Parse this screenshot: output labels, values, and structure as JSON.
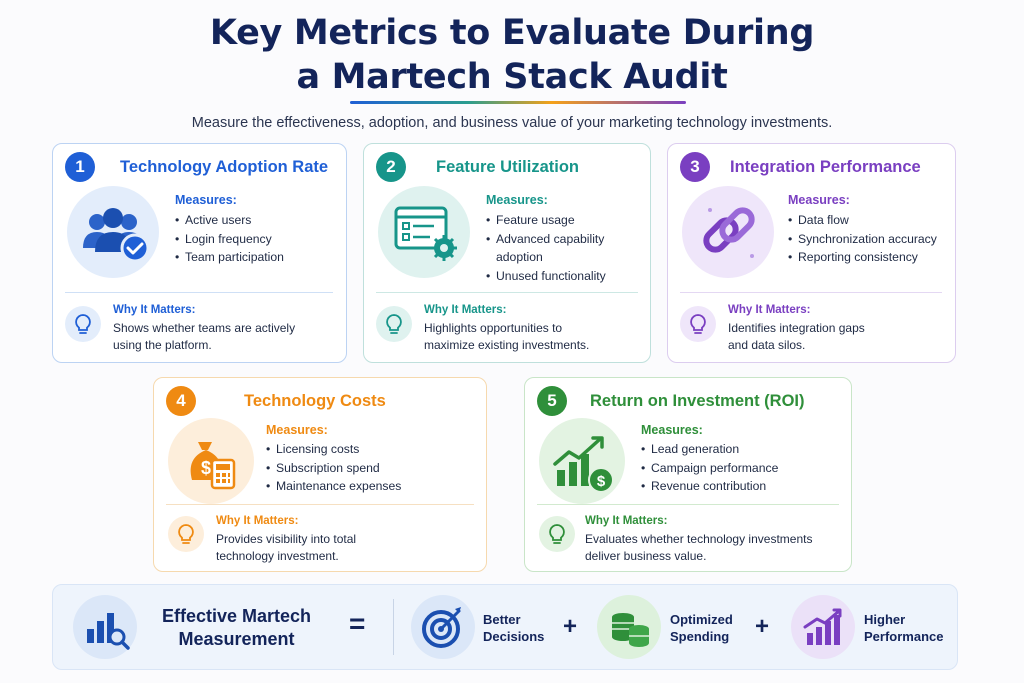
{
  "title": {
    "line1": "Key Metrics to Evaluate During",
    "line2": "a Martech Stack Audit"
  },
  "subtitle": "Measure the effectiveness, adoption, and business value of your marketing technology investments.",
  "cards": [
    {
      "number": "1",
      "title": "Technology Adoption Rate",
      "accent": "#1f5fd6",
      "icon": "users-check-icon",
      "measures_label": "Measures:",
      "measures": [
        "Active users",
        "Login frequency",
        "Team participation"
      ],
      "why_label": "Why It Matters:",
      "why_lines": [
        "Shows whether teams are actively",
        "using the platform."
      ]
    },
    {
      "number": "2",
      "title": "Feature Utilization",
      "accent": "#17958a",
      "icon": "dashboard-gear-icon",
      "measures_label": "Measures:",
      "measures": [
        "Feature usage",
        "Advanced capability",
        "adoption",
        "Unused functionality"
      ],
      "why_label": "Why It Matters:",
      "why_lines": [
        "Highlights opportunities to",
        "maximize existing investments."
      ]
    },
    {
      "number": "3",
      "title": "Integration Performance",
      "accent": "#7a3fc1",
      "icon": "chain-link-icon",
      "measures_label": "Measures:",
      "measures": [
        "Data flow",
        "Synchronization accuracy",
        "Reporting consistency"
      ],
      "why_label": "Why It Matters:",
      "why_lines": [
        "Identifies integration gaps",
        "and data silos."
      ]
    },
    {
      "number": "4",
      "title": "Technology Costs",
      "accent": "#ef8a12",
      "icon": "money-bag-calculator-icon",
      "measures_label": "Measures:",
      "measures": [
        "Licensing costs",
        "Subscription spend",
        "Maintenance expenses"
      ],
      "why_label": "Why It Matters:",
      "why_lines": [
        "Provides visibility into total",
        "technology investment."
      ]
    },
    {
      "number": "5",
      "title": "Return on Investment (ROI)",
      "accent": "#2f8f3a",
      "icon": "growth-chart-dollar-icon",
      "measures_label": "Measures:",
      "measures": [
        "Lead generation",
        "Campaign performance",
        "Revenue contribution"
      ],
      "why_label": "Why It Matters:",
      "why_lines": [
        "Evaluates whether technology investments",
        "deliver business value."
      ]
    }
  ],
  "bottom": {
    "title_line1": "Effective Martech",
    "title_line2": "Measurement",
    "equals": "=",
    "plus": "+",
    "outcomes": [
      {
        "icon": "target-icon",
        "line1": "Better",
        "line2": "Decisions"
      },
      {
        "icon": "coins-stack-icon",
        "line1": "Optimized",
        "line2": "Spending"
      },
      {
        "icon": "rising-bars-icon",
        "line1": "Higher",
        "line2": "Performance"
      }
    ]
  }
}
